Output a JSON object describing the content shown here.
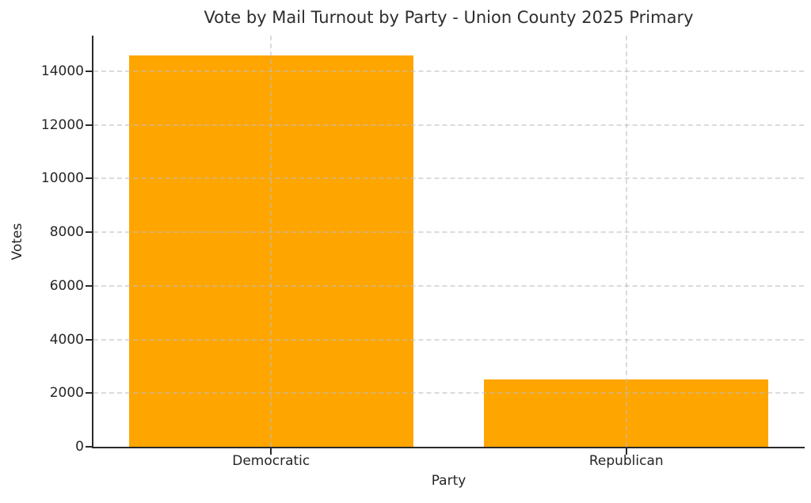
{
  "chart_data": {
    "type": "bar",
    "title": "Vote by Mail Turnout by Party - Union County 2025 Primary",
    "xlabel": "Party",
    "ylabel": "Votes",
    "categories": [
      "Democratic",
      "Republican"
    ],
    "values": [
      14600,
      2500
    ],
    "yticks": [
      0,
      2000,
      4000,
      6000,
      8000,
      10000,
      12000,
      14000
    ],
    "ylim": [
      0,
      15330
    ],
    "bar_color": "#FFA500",
    "bar_width_fraction": 0.8,
    "grid": "dashed",
    "grid_color": "#cccccc",
    "axis_color": "#2b2b2b",
    "text_color": "#262626",
    "background": "#ffffff",
    "legend": "none"
  }
}
